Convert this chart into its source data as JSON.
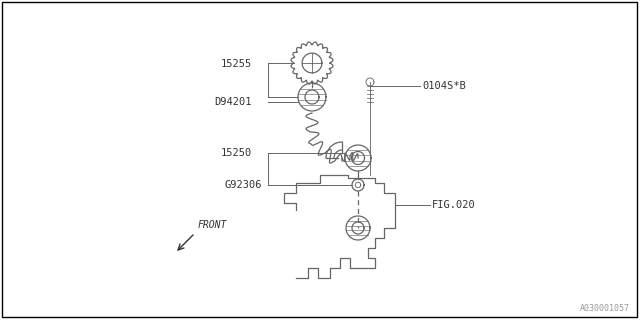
{
  "background_color": "#ffffff",
  "line_color": "#666666",
  "text_color": "#333333",
  "fig_width": 6.4,
  "fig_height": 3.2,
  "dpi": 100,
  "watermark": "A030001057",
  "label_15255": "15255",
  "label_D94201": "D94201",
  "label_15250": "15250",
  "label_G92306": "G92306",
  "label_bolt": "0104S*B",
  "label_fig": "FIG.020",
  "label_front": "FRONT"
}
